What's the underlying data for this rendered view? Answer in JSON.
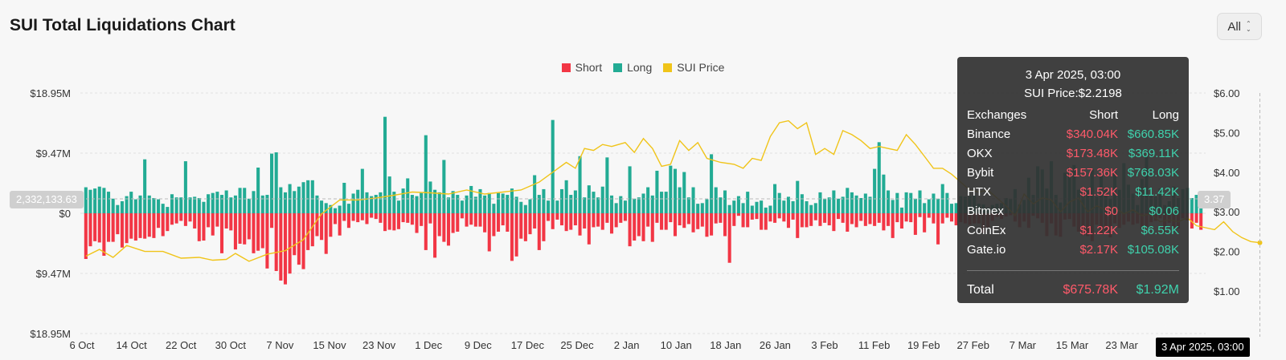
{
  "title": "SUI Total Liquidations Chart",
  "range_select": {
    "value": "All"
  },
  "chart_data": {
    "type": "bar",
    "title": "SUI Total Liquidations Chart",
    "legend_position": "top-center",
    "legend": [
      {
        "name": "Short",
        "color": "#f23645"
      },
      {
        "name": "Long",
        "color": "#22ab94"
      },
      {
        "name": "SUI Price",
        "color": "#f0c419"
      }
    ],
    "y_left_ticks": [
      "$18.95M",
      "$9.47M",
      "$0",
      "$9.47M",
      "$18.95M"
    ],
    "y_left_range_millions": [
      -18.95,
      18.95
    ],
    "y_right_ticks": [
      "$6.00",
      "$5.00",
      "$4.00",
      "$3.00",
      "$2.00",
      "$1.00"
    ],
    "y_right_range": [
      0,
      6
    ],
    "x_ticks": [
      "6 Oct",
      "14 Oct",
      "22 Oct",
      "30 Oct",
      "7 Nov",
      "15 Nov",
      "23 Nov",
      "1 Dec",
      "9 Dec",
      "17 Dec",
      "25 Dec",
      "2 Jan",
      "10 Jan",
      "18 Jan",
      "26 Jan",
      "3 Feb",
      "11 Feb",
      "19 Feb",
      "27 Feb",
      "7 Mar",
      "15 Mar",
      "23 Mar"
    ],
    "grid": true,
    "series": [
      {
        "name": "Long",
        "unit": "USD millions",
        "values": [
          4.1,
          3.7,
          3.9,
          4.2,
          4.0,
          3.4,
          2.3,
          1.3,
          1.9,
          2.7,
          3.4,
          2.2,
          2.8,
          8.5,
          2.8,
          2.4,
          2.2,
          1.5,
          1.0,
          3.0,
          2.5,
          2.5,
          8.2,
          2.5,
          2.6,
          2.4,
          1.8,
          3.0,
          3.2,
          3.4,
          2.9,
          3.6,
          2.5,
          2.8,
          4.0,
          4.0,
          2.3,
          3.5,
          7.2,
          2.8,
          2.9,
          9.4,
          9.6,
          4.1,
          3.3,
          4.6,
          3.5,
          4.2,
          4.9,
          5.2,
          5.2,
          2.8,
          2.0,
          1.6,
          1.3,
          0.8,
          1.2,
          4.8,
          1.5,
          3.1,
          3.7,
          7.0,
          3.3,
          2.7,
          2.9,
          3.3,
          15.2,
          5.8,
          3.4,
          2.0,
          3.9,
          5.5,
          2.9,
          2.7,
          3.2,
          12.3,
          5.0,
          3.7,
          3.3,
          8.4,
          2.5,
          3.5,
          2.9,
          2.0,
          2.8,
          4.3,
          2.6,
          3.8,
          2.8,
          3.2,
          1.5,
          3.2,
          3.1,
          2.9,
          3.9,
          2.6,
          1.8,
          1.3,
          2.2,
          6.0,
          2.9,
          3.8,
          2.0,
          14.7,
          2.0,
          3.8,
          5.2,
          2.9,
          3.6,
          9.0,
          2.5,
          4.4,
          3.4,
          2.5,
          4.2,
          8.8,
          2.8,
          1.6,
          2.7,
          2.0,
          7.4,
          2.3,
          2.5,
          3.1,
          4.1,
          2.8,
          6.7,
          3.4,
          3.4,
          7.5,
          7.0,
          4.1,
          6.5,
          2.5,
          4.1,
          1.5,
          1.6,
          2.2,
          9.3,
          4.1,
          2.5,
          3.6,
          1.3,
          2.0,
          2.7,
          1.6,
          3.4,
          1.2,
          1.8,
          2.0,
          0.9,
          1.2,
          4.6,
          3.2,
          2.0,
          2.6,
          1.9,
          5.1,
          3.0,
          1.9,
          1.3,
          1.6,
          3.3,
          2.3,
          2.5,
          3.6,
          2.3,
          2.6,
          4.0,
          3.3,
          2.8,
          2.4,
          3.1,
          2.6,
          7.0,
          11.2,
          6.1,
          3.6,
          2.1,
          3.2,
          0.9,
          3.3,
          3.2,
          2.3,
          3.6,
          1.6,
          2.2,
          3.1,
          2.3,
          4.6,
          3.2,
          1.5,
          1.6,
          2.7,
          2.6,
          2.7,
          2.8,
          1.5,
          1.4,
          0.9,
          1.3,
          1.5,
          1.6,
          2.4,
          2.3,
          3.8,
          1.4,
          2.1,
          5.6,
          2.9,
          7.4,
          6.9,
          3.9,
          8.2,
          2.9,
          1.7,
          6.4,
          7.2,
          7.6,
          3.7,
          4.1,
          3.6,
          7.0,
          2.6,
          6.0,
          4.0,
          2.3,
          6.4,
          3.7,
          7.9,
          4.5,
          3.1,
          1.3,
          5.4,
          8.9,
          2.7,
          2.6,
          3.9,
          1.3,
          1.9,
          4.2,
          2.4,
          3.8,
          4.0,
          2.4,
          2.9,
          1.9
        ]
      },
      {
        "name": "Short",
        "unit": "USD millions",
        "values": [
          7.2,
          5.2,
          4.4,
          4.6,
          6.7,
          4.5,
          4.5,
          3.3,
          5.4,
          4.7,
          4.0,
          4.3,
          3.9,
          4.0,
          3.7,
          3.9,
          2.3,
          3.6,
          2.8,
          1.8,
          1.6,
          1.2,
          2.0,
          1.3,
          2.4,
          4.4,
          4.3,
          2.2,
          3.5,
          2.1,
          6.3,
          2.4,
          2.7,
          5.7,
          4.8,
          4.9,
          4.1,
          6.3,
          5.9,
          5.5,
          8.7,
          2.3,
          9.1,
          10.6,
          11.2,
          9.5,
          6.6,
          8.1,
          8.8,
          5.8,
          5.2,
          3.6,
          4.2,
          6.4,
          3.7,
          1.7,
          3.5,
          1.2,
          2.3,
          1.2,
          1.4,
          1.1,
          1.7,
          0.7,
          0.9,
          1.5,
          2.8,
          2.6,
          2.7,
          2.5,
          1.4,
          1.5,
          1.8,
          3.1,
          2.0,
          5.8,
          1.6,
          7.0,
          3.6,
          4.5,
          5.1,
          3.1,
          2.9,
          0.8,
          2.1,
          1.8,
          2.1,
          2.1,
          3.0,
          6.0,
          3.6,
          2.9,
          1.9,
          2.9,
          7.5,
          6.8,
          4.0,
          4.4,
          3.3,
          2.4,
          5.8,
          4.4,
          1.2,
          2.5,
          1.0,
          1.9,
          2.8,
          2.6,
          1.9,
          3.5,
          2.4,
          4.9,
          2.2,
          2.1,
          2.6,
          1.5,
          3.2,
          2.2,
          1.5,
          1.2,
          5.2,
          4.3,
          3.6,
          4.4,
          2.1,
          4.5,
          1.5,
          2.6,
          2.6,
          1.4,
          3.6,
          1.9,
          2.3,
          1.7,
          3.0,
          2.5,
          2.1,
          3.7,
          3.5,
          1.6,
          1.5,
          3.6,
          7.8,
          2.0,
          0.4,
          2.2,
          2.2,
          1.0,
          0.9,
          2.6,
          2.6,
          1.3,
          1.5,
          0.8,
          1.3,
          2.3,
          1.0,
          3.9,
          2.2,
          2.2,
          2.0,
          1.1,
          2.0,
          1.5,
          1.9,
          2.8,
          0.9,
          1.5,
          2.9,
          1.7,
          2.2,
          1.2,
          2.0,
          1.7,
          2.0,
          1.5,
          2.7,
          2.0,
          3.9,
          1.4,
          2.4,
          1.3,
          1.4,
          3.4,
          0.6,
          3.0,
          0.7,
          1.6,
          4.9,
          1.6,
          0.7,
          1.3,
          1.9,
          1.4,
          1.6,
          1.8,
          1.6,
          1.6,
          3.1,
          2.2,
          1.2,
          0.6,
          0.9,
          0.5,
          0.3,
          1.3,
          2.2,
          1.3,
          2.3,
          0.4,
          0.8,
          1.5,
          3.6,
          1.6,
          3.5,
          3.7,
          1.0,
          0.9,
          2.1,
          2.9,
          3.5,
          3.6,
          4.4,
          1.8,
          3.4,
          2.8,
          3.8,
          1.6,
          2.3,
          1.8,
          1.3,
          1.8,
          1.6,
          2.5,
          2.2,
          1.4,
          1.2,
          0.8,
          3.0,
          1.5,
          2.2,
          2.4,
          0.8,
          1.1,
          2.4,
          1.5,
          2.6,
          1.4,
          2.2,
          1.4
        ]
      },
      {
        "name": "SUI Price",
        "unit": "USD",
        "points": [
          [
            0,
            1.88
          ],
          [
            3,
            2.05
          ],
          [
            6,
            1.85
          ],
          [
            9,
            2.15
          ],
          [
            13,
            2.0
          ],
          [
            17,
            2.0
          ],
          [
            21,
            1.83
          ],
          [
            25,
            1.85
          ],
          [
            28,
            1.78
          ],
          [
            31,
            1.8
          ],
          [
            33,
            1.95
          ],
          [
            36,
            1.75
          ],
          [
            40,
            1.93
          ],
          [
            44,
            2.02
          ],
          [
            48,
            2.3
          ],
          [
            52,
            2.95
          ],
          [
            56,
            3.3
          ],
          [
            60,
            3.3
          ],
          [
            64,
            3.35
          ],
          [
            68,
            3.42
          ],
          [
            72,
            3.5
          ],
          [
            76,
            3.48
          ],
          [
            80,
            3.45
          ],
          [
            84,
            3.55
          ],
          [
            88,
            3.45
          ],
          [
            92,
            3.5
          ],
          [
            96,
            3.55
          ],
          [
            100,
            3.75
          ],
          [
            103,
            4.0
          ],
          [
            106,
            4.25
          ],
          [
            108,
            4.1
          ],
          [
            110,
            4.6
          ],
          [
            112,
            4.55
          ],
          [
            114,
            4.7
          ],
          [
            116,
            4.65
          ],
          [
            119,
            4.75
          ],
          [
            121,
            4.5
          ],
          [
            123,
            4.85
          ],
          [
            125,
            4.6
          ],
          [
            127,
            4.15
          ],
          [
            129,
            4.2
          ],
          [
            131,
            4.8
          ],
          [
            133,
            4.55
          ],
          [
            135,
            4.75
          ],
          [
            137,
            4.35
          ],
          [
            140,
            4.25
          ],
          [
            143,
            4.2
          ],
          [
            145,
            4.1
          ],
          [
            147,
            4.35
          ],
          [
            149,
            4.3
          ],
          [
            151,
            4.9
          ],
          [
            153,
            5.25
          ],
          [
            155,
            5.3
          ],
          [
            157,
            5.1
          ],
          [
            159,
            5.25
          ],
          [
            161,
            4.45
          ],
          [
            163,
            4.6
          ],
          [
            165,
            4.45
          ],
          [
            167,
            5.05
          ],
          [
            169,
            4.95
          ],
          [
            171,
            4.8
          ],
          [
            173,
            4.6
          ],
          [
            175,
            4.65
          ],
          [
            177,
            4.6
          ],
          [
            179,
            4.55
          ],
          [
            181,
            4.95
          ],
          [
            183,
            4.7
          ],
          [
            185,
            4.4
          ],
          [
            187,
            4.1
          ],
          [
            189,
            4.1
          ],
          [
            191,
            3.95
          ],
          [
            193,
            3.75
          ],
          [
            195,
            3.55
          ],
          [
            197,
            3.5
          ],
          [
            199,
            3.55
          ],
          [
            201,
            3.35
          ],
          [
            203,
            3.15
          ],
          [
            205,
            2.9
          ],
          [
            207,
            3.45
          ],
          [
            209,
            3.2
          ],
          [
            211,
            3.35
          ],
          [
            213,
            3.3
          ],
          [
            215,
            3.0
          ],
          [
            217,
            3.25
          ],
          [
            219,
            3.35
          ],
          [
            221,
            3.0
          ],
          [
            223,
            3.15
          ],
          [
            225,
            3.05
          ],
          [
            227,
            3.1
          ],
          [
            229,
            2.95
          ],
          [
            231,
            3.05
          ],
          [
            233,
            2.9
          ],
          [
            235,
            2.95
          ],
          [
            237,
            2.75
          ],
          [
            239,
            2.8
          ],
          [
            241,
            2.75
          ],
          [
            243,
            2.85
          ],
          [
            245,
            2.65
          ],
          [
            247,
            2.6
          ],
          [
            249,
            2.55
          ],
          [
            251,
            2.75
          ],
          [
            253,
            2.5
          ],
          [
            255,
            2.35
          ],
          [
            257,
            2.25
          ],
          [
            259,
            2.22
          ]
        ]
      }
    ],
    "cursor_y_left_label": "2,332,133.63",
    "cursor_y_right_label": "3.37",
    "cursor_x_label": "3 Apr 2025, 03:00"
  },
  "tooltip": {
    "date": "3 Apr 2025, 03:00",
    "price": "SUI Price:$2.2198",
    "headers": {
      "exchange": "Exchanges",
      "short": "Short",
      "long": "Long"
    },
    "rows": [
      {
        "exchange": "Binance",
        "short": "$340.04K",
        "long": "$660.85K"
      },
      {
        "exchange": "OKX",
        "short": "$173.48K",
        "long": "$369.11K"
      },
      {
        "exchange": "Bybit",
        "short": "$157.36K",
        "long": "$768.03K"
      },
      {
        "exchange": "HTX",
        "short": "$1.52K",
        "long": "$11.42K"
      },
      {
        "exchange": "Bitmex",
        "short": "$0",
        "long": "$0.06"
      },
      {
        "exchange": "CoinEx",
        "short": "$1.22K",
        "long": "$6.55K"
      },
      {
        "exchange": "Gate.io",
        "short": "$2.17K",
        "long": "$105.08K"
      }
    ],
    "total": {
      "label": "Total",
      "short": "$675.78K",
      "long": "$1.92M"
    }
  }
}
